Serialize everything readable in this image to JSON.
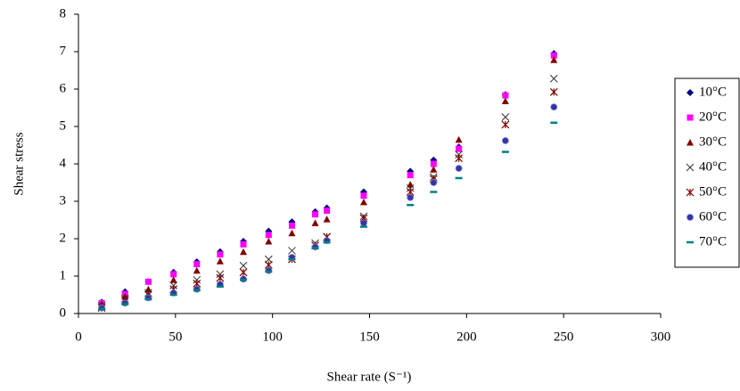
{
  "chart_data": {
    "type": "scatter",
    "x_label": "Shear rate (S⁻¹)",
    "y_label": "Shear stress",
    "x": [
      12,
      24,
      36,
      49,
      61,
      73,
      85,
      98,
      110,
      122,
      128,
      147,
      171,
      183,
      196,
      220,
      245
    ],
    "series": [
      {
        "name": "10°C",
        "color": "#000080",
        "marker": "diamond",
        "values": [
          0.3,
          0.58,
          0.85,
          1.1,
          1.38,
          1.65,
          1.93,
          2.2,
          2.45,
          2.72,
          2.82,
          3.25,
          3.8,
          4.1,
          4.45,
          5.85,
          6.95
        ]
      },
      {
        "name": "20°C",
        "color": "#ff00ff",
        "marker": "square",
        "values": [
          0.28,
          0.52,
          0.85,
          1.05,
          1.32,
          1.58,
          1.85,
          2.1,
          2.35,
          2.65,
          2.75,
          3.15,
          3.7,
          4.0,
          4.4,
          5.83,
          6.9
        ]
      },
      {
        "name": "30°C",
        "color": "#800000",
        "marker": "triangle",
        "values": [
          0.25,
          0.45,
          0.65,
          0.9,
          1.15,
          1.4,
          1.65,
          1.93,
          2.15,
          2.42,
          2.52,
          2.98,
          3.45,
          3.85,
          4.65,
          5.68,
          6.78
        ]
      },
      {
        "name": "40°C",
        "color": "#333333",
        "marker": "x",
        "values": [
          0.2,
          0.4,
          0.55,
          0.75,
          0.9,
          1.05,
          1.28,
          1.45,
          1.68,
          1.88,
          2.05,
          2.6,
          3.35,
          3.65,
          4.25,
          5.25,
          6.28
        ]
      },
      {
        "name": "50°C",
        "color": "#800000",
        "marker": "star",
        "values": [
          0.15,
          0.35,
          0.5,
          0.65,
          0.8,
          0.95,
          1.1,
          1.3,
          1.45,
          1.82,
          2.05,
          2.55,
          3.25,
          3.6,
          4.15,
          5.05,
          5.92
        ]
      },
      {
        "name": "60°C",
        "color": "#3333aa",
        "marker": "circle",
        "values": [
          0.15,
          0.28,
          0.42,
          0.55,
          0.65,
          0.78,
          0.92,
          1.15,
          1.5,
          1.78,
          1.95,
          2.42,
          3.1,
          3.5,
          3.88,
          4.62,
          5.52
        ]
      },
      {
        "name": "70°C",
        "color": "#008080",
        "marker": "dash",
        "values": [
          0.12,
          0.25,
          0.38,
          0.5,
          0.62,
          0.72,
          0.9,
          1.12,
          1.45,
          1.75,
          1.9,
          2.32,
          2.9,
          3.25,
          3.62,
          4.32,
          5.1
        ]
      }
    ],
    "xlim": [
      0,
      300
    ],
    "xticks": [
      0,
      50,
      100,
      150,
      200,
      250,
      300
    ],
    "ylim": [
      0,
      8
    ],
    "yticks": [
      0,
      1,
      2,
      3,
      4,
      5,
      6,
      7,
      8
    ],
    "grid": false
  }
}
